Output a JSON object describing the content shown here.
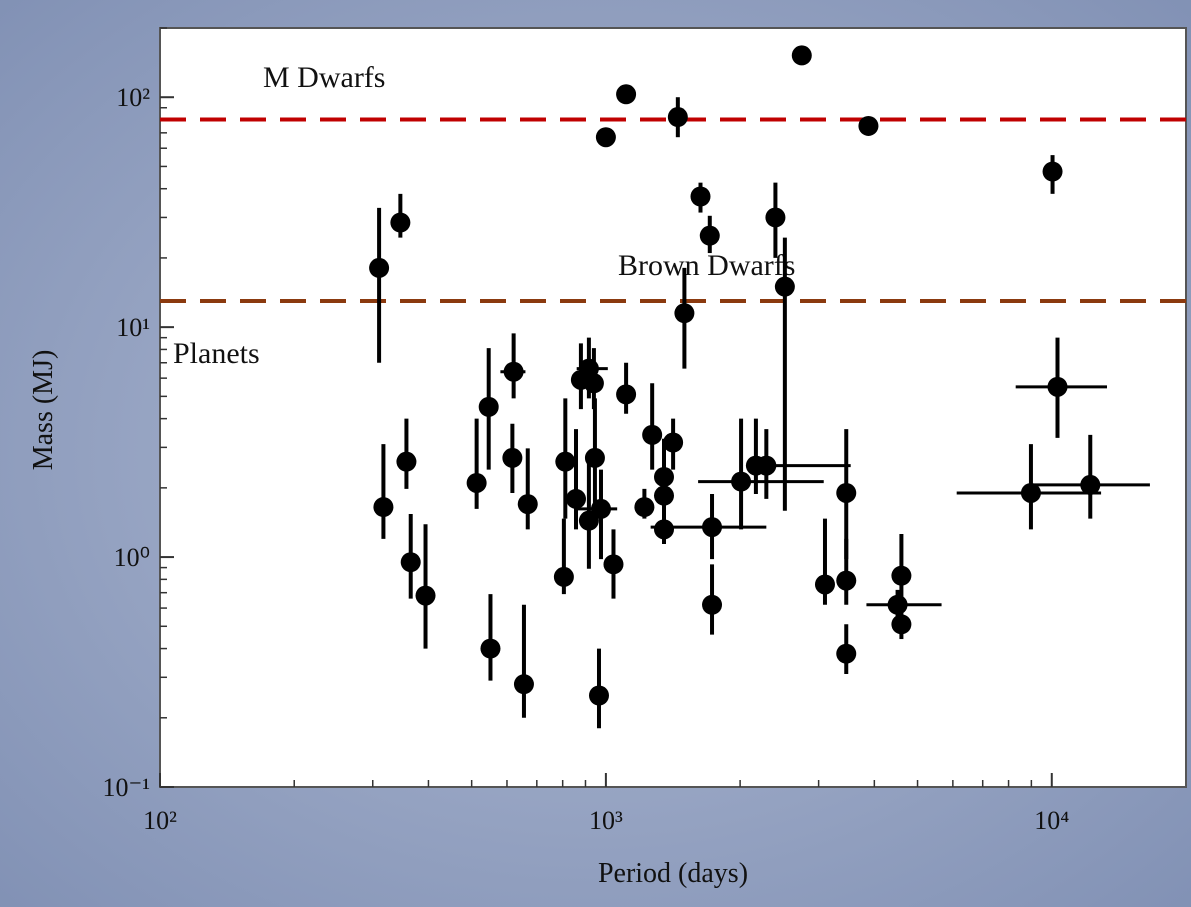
{
  "chart_data": {
    "type": "scatter",
    "xlabel": "Period (days)",
    "ylabel": "Mass (MJ)",
    "xscale": "log",
    "yscale": "log",
    "xlim": [
      100,
      20000
    ],
    "ylim": [
      0.1,
      200
    ],
    "xticks": [
      {
        "value": 100,
        "label": "10²"
      },
      {
        "value": 1000,
        "label": "10³"
      },
      {
        "value": 10000,
        "label": "10⁴"
      }
    ],
    "yticks": [
      {
        "value": 0.1,
        "label": "10⁻¹"
      },
      {
        "value": 1,
        "label": "10⁰"
      },
      {
        "value": 10,
        "label": "10¹"
      },
      {
        "value": 100,
        "label": "10²"
      }
    ],
    "xminorticks": [
      200,
      300,
      400,
      500,
      600,
      700,
      800,
      900,
      2000,
      3000,
      4000,
      5000,
      6000,
      7000,
      8000,
      9000
    ],
    "yminorticks": [
      0.2,
      0.3,
      0.4,
      0.5,
      0.6,
      0.7,
      0.8,
      0.9,
      2,
      3,
      4,
      5,
      6,
      7,
      8,
      9,
      20,
      30,
      40,
      50,
      60,
      70,
      80,
      90,
      200
    ],
    "grid": false,
    "hlines": [
      {
        "y": 80,
        "color": "#c00000"
      },
      {
        "y": 13,
        "color": "#8b3a0f"
      }
    ],
    "annotations": [
      "M Dwarfs",
      "Brown Dwarfs",
      "Planets"
    ],
    "series": [
      {
        "color": "#000000",
        "x": [
          310,
          346,
          317,
          357,
          365,
          394,
          513,
          546,
          551,
          621,
          617,
          668,
          655,
          805,
          811,
          857,
          879,
          916,
          940,
          916,
          945,
          975,
          965,
          1000,
          1040,
          1110,
          1110,
          1220,
          1270,
          1350,
          1350,
          1350,
          1415,
          1450,
          1500,
          1630,
          1710,
          1730,
          1730,
          2010,
          2170,
          2290,
          2400,
          2520,
          2750,
          3100,
          3460,
          3460,
          3460,
          3880,
          4510,
          4600,
          4600,
          8980,
          10040,
          10300,
          12200
        ],
        "values": [
          18.1,
          28.5,
          1.65,
          2.6,
          0.95,
          0.68,
          2.1,
          4.5,
          0.4,
          6.4,
          2.7,
          1.7,
          0.28,
          0.82,
          2.6,
          1.79,
          5.9,
          6.6,
          5.7,
          1.44,
          2.7,
          1.62,
          0.25,
          67,
          0.93,
          103,
          5.1,
          1.65,
          3.4,
          1.32,
          1.85,
          2.23,
          3.15,
          82,
          11.5,
          37,
          25,
          1.35,
          0.62,
          2.13,
          2.5,
          2.5,
          30,
          15,
          152,
          0.76,
          1.9,
          0.79,
          0.38,
          75,
          0.62,
          0.83,
          0.51,
          1.9,
          47.5,
          5.5,
          2.06
        ],
        "y_low": [
          7.0,
          24.5,
          1.2,
          1.98,
          0.66,
          0.4,
          1.62,
          2.4,
          0.29,
          4.9,
          1.9,
          1.32,
          0.2,
          0.69,
          1.47,
          1.32,
          4.4,
          4.9,
          4.4,
          0.89,
          1.47,
          0.98,
          0.18,
          null,
          0.66,
          null,
          4.2,
          1.47,
          2.4,
          1.14,
          1.47,
          1.7,
          2.4,
          67,
          6.6,
          31.5,
          21,
          0.98,
          0.46,
          1.32,
          1.88,
          1.79,
          20,
          1.59,
          null,
          0.62,
          0.98,
          0.62,
          0.31,
          null,
          0.51,
          0.66,
          0.44,
          1.32,
          38,
          3.3,
          1.47
        ],
        "y_high": [
          33,
          38,
          3.1,
          4.0,
          1.54,
          1.39,
          4.0,
          8.1,
          0.69,
          9.4,
          3.8,
          2.97,
          0.62,
          1.47,
          4.9,
          3.6,
          8.5,
          9.0,
          8.1,
          2.68,
          4.9,
          2.4,
          0.4,
          null,
          1.32,
          null,
          7.0,
          1.98,
          5.7,
          1.88,
          2.7,
          3.27,
          4.0,
          100,
          18.1,
          42.5,
          30.5,
          1.88,
          0.93,
          4.0,
          4.0,
          3.6,
          42.5,
          24.5,
          null,
          1.47,
          3.6,
          1.2,
          0.51,
          null,
          0.72,
          1.26,
          0.61,
          3.1,
          56,
          9.0,
          3.4
        ],
        "x_low": [
          null,
          null,
          null,
          null,
          null,
          null,
          null,
          null,
          null,
          580,
          null,
          null,
          null,
          null,
          null,
          null,
          null,
          860,
          null,
          null,
          null,
          850,
          null,
          null,
          null,
          null,
          null,
          null,
          null,
          null,
          null,
          null,
          null,
          null,
          null,
          null,
          null,
          1260,
          null,
          1610,
          null,
          2130,
          null,
          null,
          null,
          null,
          null,
          null,
          null,
          null,
          3840,
          null,
          null,
          6120,
          null,
          8300,
          9000
        ],
        "x_high": [
          null,
          null,
          null,
          null,
          null,
          null,
          null,
          null,
          null,
          660,
          null,
          null,
          null,
          null,
          null,
          null,
          null,
          1010,
          null,
          null,
          null,
          1060,
          null,
          null,
          null,
          null,
          null,
          null,
          null,
          null,
          null,
          null,
          null,
          null,
          null,
          null,
          null,
          2290,
          null,
          3080,
          null,
          3540,
          null,
          null,
          null,
          null,
          null,
          null,
          null,
          null,
          5660,
          null,
          null,
          12900,
          null,
          13300,
          16600
        ]
      }
    ]
  }
}
